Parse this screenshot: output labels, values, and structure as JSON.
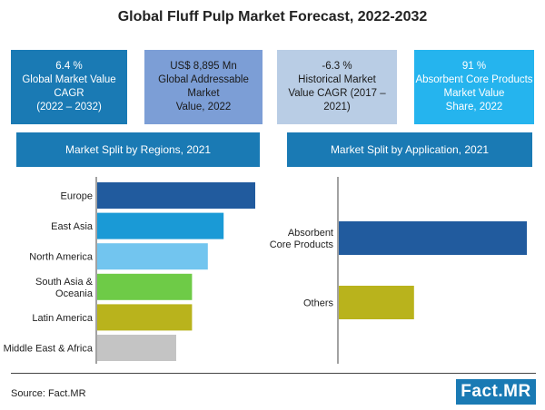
{
  "title": "Global Fluff Pulp Market Forecast, 2022-2032",
  "kpis": [
    {
      "line1": "6.4 %",
      "line2": "Global Market Value CAGR",
      "line3": "(2022 – 2032)",
      "line4": ""
    },
    {
      "line1": "US$ 8,895 Mn",
      "line2": "Global Addressable Market",
      "line3": "Value, 2022",
      "line4": ""
    },
    {
      "line1": "-6.3 %",
      "line2": "Historical Market",
      "line3": "Value CAGR (2017 – 2021)",
      "line4": ""
    },
    {
      "line1": "91 %",
      "line2": "Absorbent Core Products",
      "line3": "Market Value",
      "line4": "Share, 2022"
    }
  ],
  "region_header": "Market Split by Regions, 2021",
  "application_header": "Market Split by Application, 2021",
  "source": "Source: Fact.MR",
  "logo": "Fact.MR",
  "chart_data": [
    {
      "type": "bar",
      "orientation": "horizontal",
      "title": "Market Split by Regions, 2021",
      "categories": [
        "Europe",
        "East Asia",
        "North America",
        "South Asia & Oceania",
        "Latin America",
        "Middle East & Africa"
      ],
      "category_lines": [
        [
          "Europe"
        ],
        [
          "East Asia"
        ],
        [
          "North America"
        ],
        [
          "South Asia &",
          "Oceania"
        ],
        [
          "Latin America"
        ],
        [
          "Middle East & Africa"
        ]
      ],
      "values": [
        100,
        80,
        70,
        60,
        60,
        50
      ],
      "colors": [
        "#215b9e",
        "#1a9ad6",
        "#72c5ef",
        "#6ecb47",
        "#b9b31c",
        "#c4c4c4"
      ],
      "xlabel": "",
      "ylabel": "",
      "xlim": [
        0,
        100
      ],
      "grid": false
    },
    {
      "type": "bar",
      "orientation": "horizontal",
      "title": "Market Split by Application, 2021",
      "categories": [
        "Absorbent Core Products",
        "Others"
      ],
      "category_lines": [
        [
          "Absorbent",
          "Core Products"
        ],
        [
          "Others"
        ]
      ],
      "values": [
        100,
        40
      ],
      "colors": [
        "#215b9e",
        "#b9b31c"
      ],
      "xlabel": "",
      "ylabel": "",
      "xlim": [
        0,
        100
      ],
      "grid": false
    }
  ]
}
